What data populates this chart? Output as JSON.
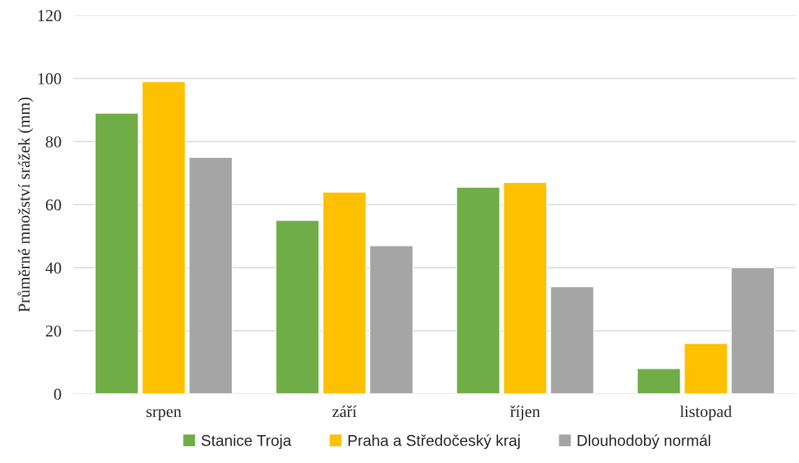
{
  "chart_data": {
    "type": "bar",
    "ylabel": "Průměrné množství srážek (mm)",
    "categories": [
      "srpen",
      "září",
      "říjen",
      "listopad"
    ],
    "series": [
      {
        "name": "Stanice Troja",
        "color": "#70ad47",
        "values": [
          89,
          55,
          65.5,
          8
        ]
      },
      {
        "name": "Praha a Středočeský kraj",
        "color": "#ffc000",
        "values": [
          99,
          64,
          67,
          16
        ]
      },
      {
        "name": "Dlouhodobý normál",
        "color": "#a5a5a5",
        "values": [
          75,
          47,
          34,
          40
        ]
      }
    ],
    "ylim": [
      0,
      120
    ],
    "yticks": [
      0,
      20,
      40,
      60,
      80,
      100,
      120
    ],
    "grid": "y",
    "legend": "bottom"
  }
}
